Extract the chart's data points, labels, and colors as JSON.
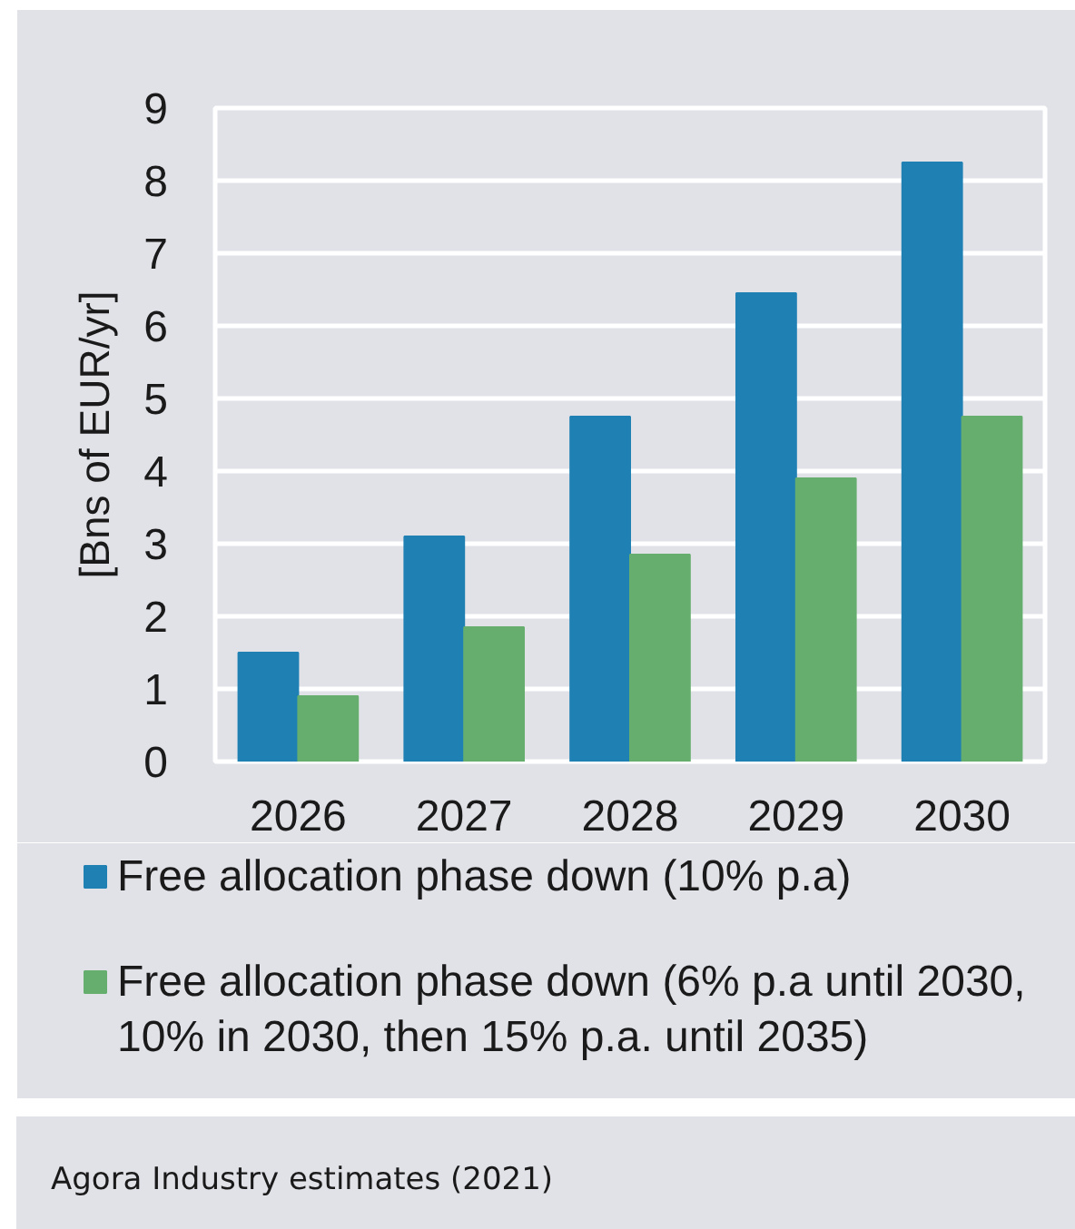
{
  "chart_data": {
    "type": "bar",
    "ylabel": "[Bns of EUR/yr]",
    "categories": [
      "2026",
      "2027",
      "2028",
      "2029",
      "2030"
    ],
    "series": [
      {
        "name": "Free allocation phase down (10% p.a)",
        "color": "#1f80b4",
        "values": [
          1.5,
          3.1,
          4.75,
          6.45,
          8.25
        ]
      },
      {
        "name": "Free allocation phase down (6% p.a until 2030, 10% in 2030, then 15% p.a. until 2035)",
        "color": "#66ae6e",
        "values": [
          0.9,
          1.85,
          2.85,
          3.9,
          4.75
        ]
      }
    ],
    "ylim": [
      0,
      9
    ],
    "yticks": [
      0,
      1,
      2,
      3,
      4,
      5,
      6,
      7,
      8,
      9
    ],
    "grid": "y",
    "legend": "bottom",
    "annotations": [
      "Agora Industry estimates (2021)"
    ]
  }
}
